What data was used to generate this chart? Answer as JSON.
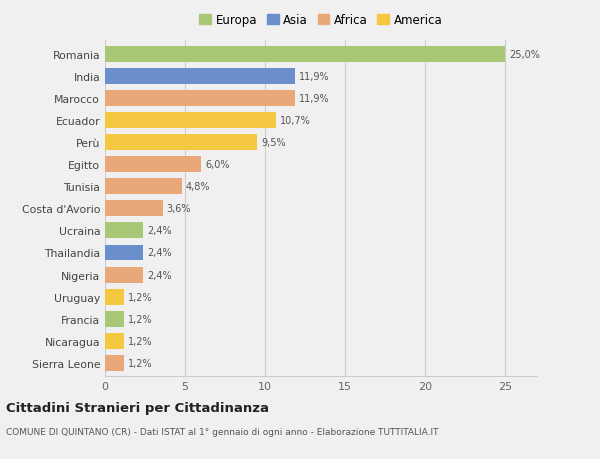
{
  "countries": [
    "Sierra Leone",
    "Nicaragua",
    "Francia",
    "Uruguay",
    "Nigeria",
    "Thailandia",
    "Ucraina",
    "Costa d'Avorio",
    "Tunisia",
    "Egitto",
    "Perù",
    "Ecuador",
    "Marocco",
    "India",
    "Romania"
  ],
  "values": [
    1.2,
    1.2,
    1.2,
    1.2,
    2.4,
    2.4,
    2.4,
    3.6,
    4.8,
    6.0,
    9.5,
    10.7,
    11.9,
    11.9,
    25.0
  ],
  "labels": [
    "1,2%",
    "1,2%",
    "1,2%",
    "1,2%",
    "2,4%",
    "2,4%",
    "2,4%",
    "3,6%",
    "4,8%",
    "6,0%",
    "9,5%",
    "10,7%",
    "11,9%",
    "11,9%",
    "25,0%"
  ],
  "colors": [
    "#e8a87a",
    "#f5c842",
    "#a8c878",
    "#f5c842",
    "#e8a87a",
    "#6a8fcc",
    "#a8c878",
    "#e8a87a",
    "#e8a87a",
    "#e8a87a",
    "#f5c842",
    "#f5c842",
    "#e8a87a",
    "#6a8fcc",
    "#a8c878"
  ],
  "legend_labels": [
    "Europa",
    "Asia",
    "Africa",
    "America"
  ],
  "legend_colors": [
    "#a8c878",
    "#6a8fcc",
    "#e8a87a",
    "#f5c842"
  ],
  "title": "Cittadini Stranieri per Cittadinanza",
  "subtitle": "COMUNE DI QUINTANO (CR) - Dati ISTAT al 1° gennaio di ogni anno - Elaborazione TUTTITALIA.IT",
  "xlim": [
    0,
    27
  ],
  "xticks": [
    0,
    5,
    10,
    15,
    20,
    25
  ],
  "bg_color": "#f0f0f0",
  "plot_bg_color": "#f0f0f0",
  "grid_color": "#cccccc"
}
